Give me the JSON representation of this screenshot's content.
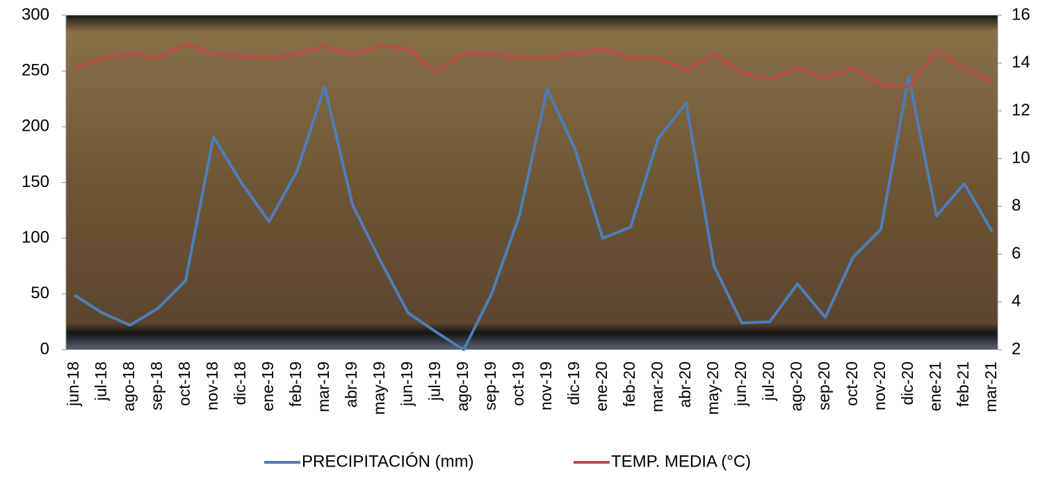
{
  "chart_data": {
    "type": "line",
    "categories": [
      "jun-18",
      "jul-18",
      "ago-18",
      "sep-18",
      "oct-18",
      "nov-18",
      "dic-18",
      "ene-19",
      "feb-19",
      "mar-19",
      "abr-19",
      "may-19",
      "jun-19",
      "jul-19",
      "ago-19",
      "sep-19",
      "oct-19",
      "nov-19",
      "dic-19",
      "ene-20",
      "feb-20",
      "mar-20",
      "abr-20",
      "may-20",
      "jun-20",
      "jul-20",
      "ago-20",
      "sep-20",
      "oct-20",
      "nov-20",
      "dic-20",
      "ene-21",
      "feb-21",
      "mar-21"
    ],
    "series": [
      {
        "name": "PRECIPITACIÓN (mm)",
        "color": "#4a7ebb",
        "axis": "y",
        "values": [
          49,
          33,
          22,
          37,
          62,
          191,
          150,
          115,
          160,
          236,
          130,
          80,
          33,
          16,
          0,
          50,
          120,
          234,
          180,
          100,
          110,
          190,
          221,
          75,
          24,
          25,
          59,
          29,
          83,
          108,
          245,
          120,
          149,
          106
        ]
      },
      {
        "name": "TEMP. MEDIA (°C)",
        "color": "#be4b48",
        "axis": "y2",
        "values": [
          13.8,
          14.2,
          14.4,
          14.2,
          14.8,
          14.4,
          14.3,
          14.2,
          14.4,
          14.7,
          14.4,
          14.7,
          14.6,
          13.6,
          14.4,
          14.4,
          14.2,
          14.2,
          14.4,
          14.6,
          14.2,
          14.2,
          13.7,
          14.4,
          13.6,
          13.3,
          13.8,
          13.4,
          13.8,
          13.1,
          13.0,
          14.5,
          13.8,
          13.2
        ]
      }
    ],
    "ylim": [
      0,
      300
    ],
    "yticks": [
      0,
      50,
      100,
      150,
      200,
      250,
      300
    ],
    "y2lim": [
      2,
      16
    ],
    "y2ticks": [
      2,
      4,
      6,
      8,
      10,
      12,
      14,
      16
    ],
    "legend": "bottom"
  }
}
